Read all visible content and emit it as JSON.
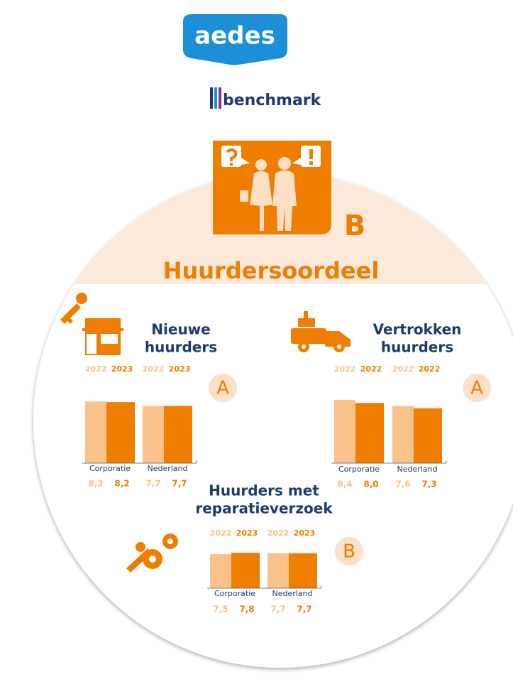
{
  "logo": {
    "brand": "aedes",
    "product": "benchmark"
  },
  "title": "Huurdersoordeel",
  "grade": "B",
  "chart_data": [
    {
      "type": "bar",
      "title_lines": [
        "Nieuwe",
        "huurders"
      ],
      "grade": "A",
      "categories": [
        "Corporatie",
        "Nederland"
      ],
      "series": [
        {
          "name": "2022",
          "color": "#f9c28b",
          "values": [
            8.3,
            7.7
          ],
          "value_labels": [
            "8,3",
            "7,7"
          ]
        },
        {
          "name": "2023",
          "color": "#ee7d00",
          "values": [
            8.2,
            7.7
          ],
          "value_labels": [
            "8,2",
            "7,7"
          ]
        }
      ],
      "ylim": [
        0,
        8.5
      ]
    },
    {
      "type": "bar",
      "title_lines": [
        "Vertrokken",
        "huurders"
      ],
      "grade": "A",
      "categories": [
        "Corporatie",
        "Nederland"
      ],
      "series": [
        {
          "name": "2022",
          "color": "#f9c28b",
          "values": [
            8.4,
            7.6
          ],
          "value_labels": [
            "8,4",
            "7,6"
          ]
        },
        {
          "name": "2022",
          "color": "#ee7d00",
          "values": [
            8.0,
            7.3
          ],
          "value_labels": [
            "8,0",
            "7,3"
          ]
        }
      ],
      "ylim": [
        0,
        8.5
      ]
    },
    {
      "type": "bar",
      "title_lines": [
        "Huurders met",
        "reparatieverzoek"
      ],
      "grade": "B",
      "categories": [
        "Corporatie",
        "Nederland"
      ],
      "series": [
        {
          "name": "2022",
          "color": "#f9c28b",
          "values": [
            7.5,
            7.7
          ],
          "value_labels": [
            "7,5",
            "7,7"
          ]
        },
        {
          "name": "2023",
          "color": "#ee7d00",
          "values": [
            7.8,
            7.7
          ],
          "value_labels": [
            "7,8",
            "7,7"
          ]
        }
      ],
      "ylim": [
        0,
        13
      ]
    }
  ]
}
